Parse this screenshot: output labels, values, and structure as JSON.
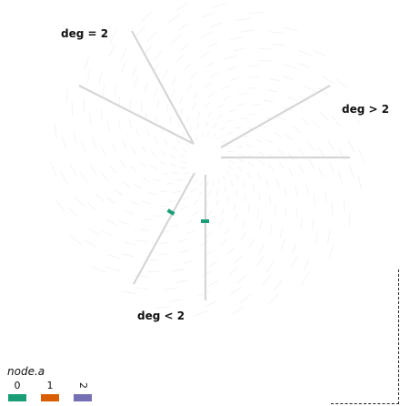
{
  "axes": [
    {
      "label": "deg = 2"
    },
    {
      "label": "deg > 2"
    },
    {
      "label": "deg < 2"
    }
  ],
  "nodes": [
    {
      "group": "0"
    },
    {
      "group": "0"
    }
  ],
  "legend": {
    "title": "node.a",
    "items": [
      {
        "label": "0",
        "color": "#1b9e77"
      },
      {
        "label": "1",
        "color": "#d95f02"
      },
      {
        "label": "2",
        "color": "#7570b3"
      }
    ]
  }
}
